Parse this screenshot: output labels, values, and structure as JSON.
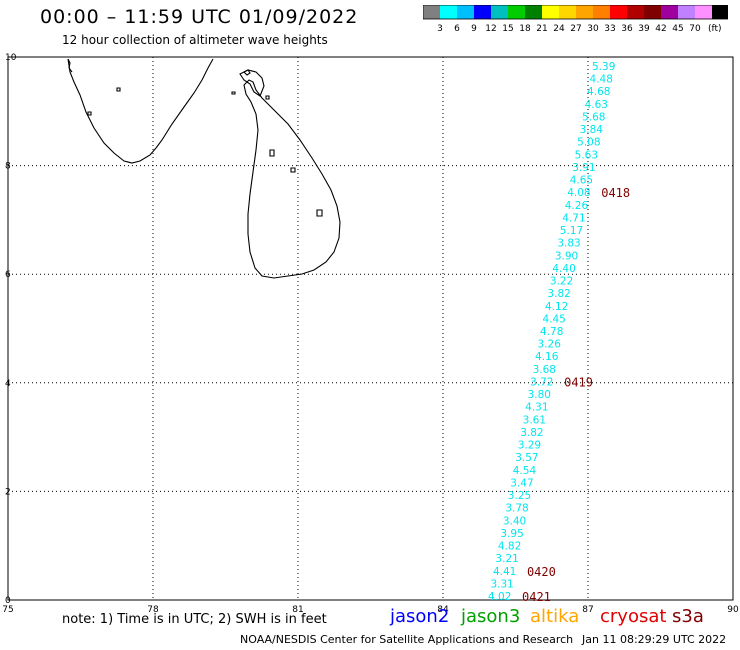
{
  "header": {
    "title": "00:00 – 11:59 UTC 01/09/2022",
    "subtitle": "12 hour collection of altimeter wave heights"
  },
  "colorbar": {
    "colors": [
      "#808080",
      "#00ffff",
      "#00bfff",
      "#0000ff",
      "#00bfbf",
      "#00cc00",
      "#008000",
      "#ffff00",
      "#ffd700",
      "#ffa500",
      "#ff7f00",
      "#ff0000",
      "#b00000",
      "#800000",
      "#a000a0",
      "#c080ff",
      "#ff90ff",
      "#000000"
    ],
    "labels": [
      "3",
      "6",
      "9",
      "12",
      "15",
      "18",
      "21",
      "24",
      "27",
      "30",
      "33",
      "36",
      "39",
      "42",
      "45",
      "70"
    ],
    "unit": "(ft)"
  },
  "map": {
    "lon_range": [
      75,
      90
    ],
    "lat_range": [
      0,
      10
    ],
    "x_ticks": [
      "75",
      "78",
      "81",
      "84",
      "87",
      "90"
    ],
    "y_ticks": [
      "0",
      "2",
      "4",
      "6",
      "8",
      "10"
    ],
    "grid": true,
    "coast_color": "#000000",
    "track_color": "#00e5ee",
    "time_color": "#800000"
  },
  "track": {
    "values": [
      "5.39",
      "4.48",
      "4.68",
      "4.63",
      "5.68",
      "3.84",
      "5.08",
      "5.63",
      "3.91",
      "4.65",
      "4.08",
      "4.26",
      "4.71",
      "5.17",
      "3.83",
      "3.90",
      "4.40",
      "3.22",
      "3.82",
      "4.12",
      "4.45",
      "4.78",
      "3.26",
      "4.16",
      "3.68",
      "3.72",
      "3.80",
      "4.31",
      "3.61",
      "3.82",
      "3.29",
      "3.57",
      "4.54",
      "3.47",
      "3.25",
      "3.78",
      "3.40",
      "3.95",
      "4.82",
      "3.21",
      "4.41",
      "3.31",
      "4.02"
    ]
  },
  "time_labels": [
    {
      "label": "0418"
    },
    {
      "label": "0419"
    },
    {
      "label": "0420"
    },
    {
      "label": "0421"
    }
  ],
  "footer": {
    "note": "note:  1) Time is in UTC;  2) SWH is in feet",
    "satellites": [
      {
        "name": "jason2",
        "color": "#0000ff"
      },
      {
        "name": "jason3",
        "color": "#00a000"
      },
      {
        "name": "altika",
        "color": "#ffa500"
      },
      {
        "name": "cryosat",
        "color": "#e00000"
      },
      {
        "name": "s3a",
        "color": "#800000"
      }
    ],
    "credit": "NOAA/NESDIS Center for Satellite Applications and Research",
    "timestamp": "Jan 11 08:29:29 UTC 2022"
  }
}
